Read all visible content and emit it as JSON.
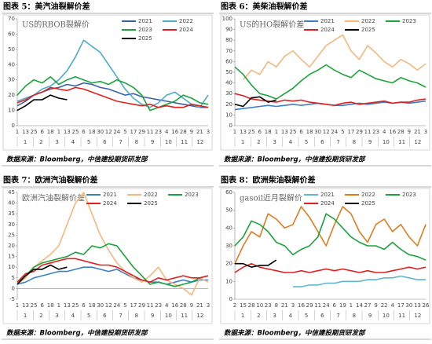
{
  "chart_data": [
    {
      "type": "line",
      "title": "图表 5：美汽油裂解价差",
      "subtitle": "US的RBOB裂解价",
      "source": "数据来源：Bloomberg，中信建投期货研发部",
      "categories": [
        "1",
        "13",
        "25",
        "6",
        "18",
        "1",
        "13",
        "25",
        "6",
        "18",
        "30",
        "12",
        "24",
        "5",
        "17",
        "29",
        "11",
        "23",
        "4",
        "16",
        "28",
        "9",
        "21",
        "3"
      ],
      "months": [
        "1",
        "2",
        "3",
        "4",
        "5",
        "6",
        "7",
        "8",
        "9",
        "10",
        "11",
        "12"
      ],
      "ylim": [
        0,
        70
      ],
      "yticks": [
        0,
        10,
        20,
        30,
        40,
        50,
        60,
        70
      ],
      "legend_columns": 2,
      "series": [
        {
          "name": "2021",
          "color": "#3a5fa8",
          "values": [
            13,
            16,
            20,
            22,
            24,
            25,
            27,
            26,
            28,
            27,
            25,
            24,
            22,
            20,
            21,
            19,
            18,
            17,
            16,
            15,
            14,
            13,
            12,
            12
          ]
        },
        {
          "name": "2022",
          "color": "#4bacc6",
          "values": [
            16,
            18,
            20,
            24,
            26,
            30,
            36,
            45,
            56,
            52,
            48,
            40,
            32,
            24,
            18,
            14,
            12,
            15,
            20,
            22,
            18,
            14,
            12,
            20
          ]
        },
        {
          "name": "2023",
          "color": "#1aa33a",
          "values": [
            20,
            26,
            30,
            28,
            32,
            27,
            30,
            32,
            30,
            28,
            29,
            27,
            30,
            28,
            25,
            20,
            10,
            12,
            14,
            16,
            20,
            18,
            15,
            14
          ]
        },
        {
          "name": "2024",
          "color": "#e02020",
          "values": [
            15,
            17,
            20,
            22,
            25,
            24,
            23,
            25,
            24,
            22,
            20,
            18,
            16,
            15,
            14,
            13,
            14,
            12,
            13,
            12,
            12,
            14,
            13,
            12
          ]
        },
        {
          "name": "2025",
          "color": "#000000",
          "values": [
            10,
            13,
            17,
            17,
            20,
            18,
            17,
            null,
            null,
            null,
            null,
            null,
            null,
            null,
            null,
            null,
            null,
            null,
            null,
            null,
            null,
            null,
            null,
            null
          ]
        }
      ]
    },
    {
      "type": "line",
      "title": "图表 6：美柴油裂解价差",
      "subtitle": "US的HO裂解价差",
      "source": "数据来源：Bloomberg，中信建投期货研发部",
      "categories": [
        "1",
        "13",
        "25",
        "6",
        "18",
        "1",
        "13",
        "25",
        "6",
        "18",
        "30",
        "12",
        "24",
        "5",
        "17",
        "29",
        "11",
        "23",
        "4",
        "16",
        "28",
        "9",
        "21",
        "3"
      ],
      "months": [
        "1",
        "2",
        "3",
        "4",
        "5",
        "6",
        "7",
        "8",
        "9",
        "10",
        "11",
        "12"
      ],
      "ylim": [
        0,
        100
      ],
      "yticks": [
        0,
        10,
        20,
        30,
        40,
        50,
        60,
        70,
        80,
        90,
        100
      ],
      "legend_columns": 3,
      "series": [
        {
          "name": "2021",
          "color": "#3a7fc8",
          "values": [
            15,
            16,
            17,
            18,
            19,
            18,
            19,
            20,
            19,
            20,
            21,
            20,
            19,
            19,
            20,
            21,
            20,
            21,
            22,
            21,
            22,
            21,
            22,
            23
          ]
        },
        {
          "name": "2022",
          "color": "#f5b77c",
          "values": [
            null,
            43,
            52,
            48,
            60,
            55,
            65,
            70,
            62,
            55,
            65,
            75,
            80,
            85,
            70,
            62,
            75,
            68,
            60,
            55,
            62,
            58,
            52,
            58
          ]
        },
        {
          "name": "2023",
          "color": "#1aa33a",
          "values": [
            55,
            48,
            38,
            30,
            28,
            25,
            30,
            35,
            42,
            48,
            52,
            57,
            52,
            48,
            45,
            52,
            48,
            44,
            42,
            40,
            45,
            42,
            40,
            36
          ]
        },
        {
          "name": "2024",
          "color": "#e02020",
          "values": [
            30,
            28,
            25,
            24,
            23,
            22,
            24,
            23,
            24,
            22,
            21,
            20,
            19,
            21,
            22,
            20,
            21,
            22,
            23,
            21,
            22,
            22,
            24,
            25
          ]
        },
        {
          "name": "2025",
          "color": "#000000",
          "values": [
            20,
            18,
            26,
            27,
            22,
            24,
            null,
            null,
            null,
            null,
            null,
            null,
            null,
            null,
            null,
            null,
            null,
            null,
            null,
            null,
            null,
            null,
            null,
            null
          ]
        }
      ]
    },
    {
      "type": "line",
      "title": "图表 7：欧洲汽油裂解价差",
      "subtitle": "欧洲汽油裂解价差",
      "source": "数据来源：Bloomberg，中信建投期货研发部",
      "categories": [
        "1",
        "13",
        "25",
        "6",
        "18",
        "1",
        "13",
        "25",
        "6",
        "18",
        "30",
        "12",
        "24",
        "5",
        "17",
        "29",
        "11",
        "23",
        "4",
        "16",
        "28",
        "9",
        "21",
        "3"
      ],
      "months": [
        "1",
        "2",
        "3",
        "4",
        "5",
        "6",
        "7",
        "8",
        "9",
        "10",
        "11",
        "12"
      ],
      "ylim": [
        -5,
        45
      ],
      "yticks": [
        -5,
        0,
        5,
        10,
        15,
        20,
        25,
        30,
        35,
        40,
        45
      ],
      "legend_columns": 3,
      "series": [
        {
          "name": "2021",
          "color": "#3a7fc8",
          "values": [
            2,
            3,
            5,
            6,
            7,
            8,
            8,
            9,
            10,
            10,
            9,
            8,
            9,
            7,
            5,
            4,
            3,
            3,
            2,
            3,
            4,
            3,
            4,
            4
          ]
        },
        {
          "name": "2022",
          "color": "#f5b77c",
          "values": [
            2,
            5,
            10,
            13,
            16,
            20,
            30,
            40,
            45,
            35,
            25,
            18,
            12,
            8,
            5,
            3,
            6,
            10,
            4,
            2,
            0,
            -3,
            5,
            3
          ]
        },
        {
          "name": "2023",
          "color": "#1aa33a",
          "values": [
            3,
            6,
            10,
            12,
            13,
            14,
            15,
            17,
            16,
            20,
            19,
            21,
            20,
            15,
            10,
            6,
            2,
            3,
            2,
            1,
            2,
            3,
            5,
            6
          ]
        },
        {
          "name": "2024",
          "color": "#e02020",
          "values": [
            3,
            7,
            8,
            11,
            12,
            13,
            14,
            14,
            13,
            12,
            11,
            11,
            10,
            8,
            6,
            4,
            3,
            5,
            4,
            5,
            6,
            5,
            5,
            6
          ]
        },
        {
          "name": "2025",
          "color": "#000000",
          "values": [
            2,
            6,
            9,
            9,
            11,
            9,
            10,
            null,
            null,
            null,
            null,
            null,
            null,
            null,
            null,
            null,
            null,
            null,
            null,
            null,
            null,
            null,
            null,
            null
          ]
        }
      ]
    },
    {
      "type": "line",
      "title": "图表 8：欧洲柴油裂解价差",
      "subtitle": "gasoil近月裂解价",
      "source": "数据来源：Bloomberg，中信建投期货研发部",
      "categories": [
        "2",
        "15",
        "28",
        "10",
        "23",
        "8",
        "21",
        "3",
        "16",
        "29",
        "11",
        "24",
        "6",
        "19",
        "1",
        "14",
        "27",
        "9",
        "22",
        "4",
        "17",
        "30",
        "13",
        "26"
      ],
      "months": [
        "1",
        "2",
        "3",
        "4",
        "5",
        "6",
        "7",
        "8",
        "9",
        "10",
        "11",
        "12"
      ],
      "ylim": [
        0,
        60
      ],
      "yticks": [
        0,
        10,
        20,
        30,
        40,
        50,
        60
      ],
      "legend_columns": 3,
      "series": [
        {
          "name": "2021",
          "color": "#5fb8d0",
          "values": [
            null,
            null,
            null,
            null,
            null,
            null,
            null,
            7,
            7,
            8,
            8,
            9,
            9,
            10,
            10,
            10,
            11,
            11,
            12,
            12,
            13,
            12,
            11,
            11
          ]
        },
        {
          "name": "2022",
          "color": "#e07b20",
          "values": [
            20,
            30,
            38,
            35,
            48,
            45,
            40,
            42,
            52,
            46,
            38,
            30,
            42,
            52,
            48,
            38,
            32,
            42,
            45,
            38,
            42,
            35,
            30,
            42
          ]
        },
        {
          "name": "2023",
          "color": "#1aa33a",
          "values": [
            30,
            35,
            44,
            42,
            38,
            32,
            30,
            25,
            28,
            30,
            35,
            48,
            45,
            40,
            35,
            32,
            30,
            30,
            28,
            32,
            28,
            25,
            24,
            22
          ]
        },
        {
          "name": "2024",
          "color": "#e02020",
          "values": [
            15,
            18,
            20,
            18,
            17,
            16,
            15,
            15,
            16,
            15,
            16,
            17,
            16,
            17,
            16,
            15,
            16,
            15,
            15,
            16,
            17,
            18,
            17,
            18
          ]
        },
        {
          "name": "2025",
          "color": "#000000",
          "values": [
            20,
            20,
            18,
            19,
            19,
            22,
            null,
            null,
            null,
            null,
            null,
            null,
            null,
            null,
            null,
            null,
            null,
            null,
            null,
            null,
            null,
            null,
            null,
            null
          ]
        }
      ]
    }
  ]
}
